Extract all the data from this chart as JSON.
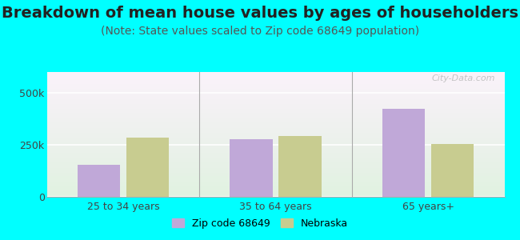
{
  "title": "Breakdown of mean house values by ages of householders",
  "subtitle": "(Note: State values scaled to Zip code 68649 population)",
  "categories": [
    "25 to 34 years",
    "35 to 64 years",
    "65 years+"
  ],
  "zip_values": [
    155000,
    278000,
    425000
  ],
  "nebraska_values": [
    285000,
    292000,
    252000
  ],
  "zip_color": "#c0a8d8",
  "nebraska_color": "#c8cc90",
  "bar_width": 0.28,
  "ylim": [
    0,
    600000
  ],
  "yticks": [
    0,
    250000,
    500000
  ],
  "ytick_labels": [
    "0",
    "250k",
    "500k"
  ],
  "background_color": "#00ffff",
  "zip_label": "Zip code 68649",
  "nebraska_label": "Nebraska",
  "title_fontsize": 14,
  "subtitle_fontsize": 10,
  "watermark": "City-Data.com",
  "separator_color": "#aaaaaa",
  "grid_color": "#cccccc"
}
